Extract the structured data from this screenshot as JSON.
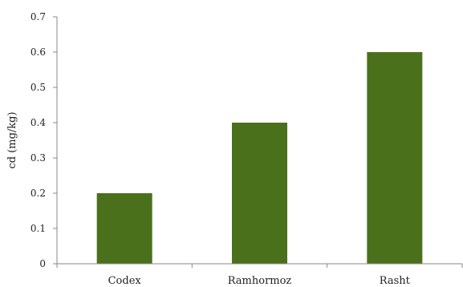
{
  "chart_data": {
    "type": "bar",
    "categories": [
      "Codex",
      "Ramhormoz",
      "Rasht"
    ],
    "values": [
      0.2,
      0.4,
      0.6
    ],
    "title": "",
    "xlabel": "",
    "ylabel": "cd (mg/kg)",
    "ylim": [
      0,
      0.7
    ],
    "yticks": [
      "0",
      "0.1",
      "0.2",
      "0.3",
      "0.4",
      "0.5",
      "0.6",
      "0.7"
    ],
    "grid": false,
    "legend": "none",
    "bar_color": "#4a701c",
    "axis_color": "#888888"
  }
}
